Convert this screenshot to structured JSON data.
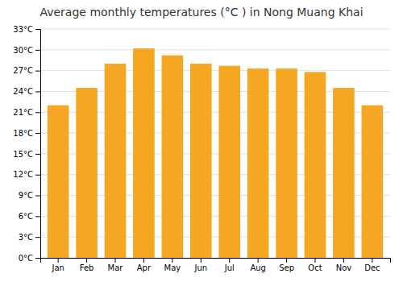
{
  "chart_data": {
    "type": "bar",
    "title": "Average monthly temperatures (°C ) in Nong Muang Khai",
    "categories": [
      "Jan",
      "Feb",
      "Mar",
      "Apr",
      "May",
      "Jun",
      "Jul",
      "Aug",
      "Sep",
      "Oct",
      "Nov",
      "Dec"
    ],
    "values": [
      22.0,
      24.5,
      28.0,
      30.2,
      29.2,
      28.0,
      27.7,
      27.3,
      27.3,
      26.8,
      24.5,
      22.0
    ],
    "color": "#F5A623",
    "ylim": [
      0,
      33
    ],
    "yticks": [
      {
        "value": 0,
        "label": "0°C"
      },
      {
        "value": 3,
        "label": "3°C"
      },
      {
        "value": 6,
        "label": "6°C"
      },
      {
        "value": 9,
        "label": "9°C"
      },
      {
        "value": 12,
        "label": "12°C"
      },
      {
        "value": 15,
        "label": "15°C"
      },
      {
        "value": 18,
        "label": "18°C"
      },
      {
        "value": 21,
        "label": "21°C"
      },
      {
        "value": 24,
        "label": "24°C"
      },
      {
        "value": 27,
        "label": "27°C"
      },
      {
        "value": 30,
        "label": "30°C"
      },
      {
        "value": 33,
        "label": "33°C"
      }
    ],
    "grid": true
  }
}
